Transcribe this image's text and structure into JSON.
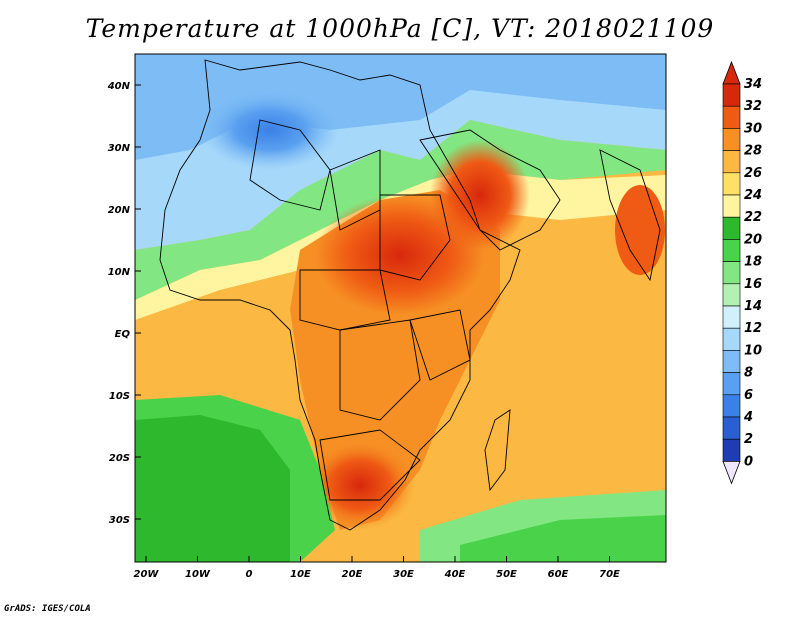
{
  "title": "Temperature at 1000hPa [C], VT: 2018021109",
  "footer": "GrADS: IGES/COLA",
  "map": {
    "lat_labels": [
      "40N",
      "30N",
      "20N",
      "10N",
      "EQ",
      "10S",
      "20S",
      "30S"
    ],
    "lon_labels": [
      "20W",
      "10W",
      "0",
      "10E",
      "20E",
      "30E",
      "40E",
      "50E",
      "60E",
      "70E"
    ]
  },
  "colorbar": {
    "ticks": [
      "0",
      "2",
      "4",
      "6",
      "8",
      "10",
      "12",
      "14",
      "16",
      "18",
      "20",
      "22",
      "24",
      "26",
      "28",
      "30",
      "32",
      "34"
    ],
    "colors": [
      "#1a1a8c",
      "#1f3cb4",
      "#2a5fd2",
      "#3a80e6",
      "#5aa0f0",
      "#7dbcf5",
      "#a6d8fa",
      "#d2f0fa",
      "#b4f0b4",
      "#82e682",
      "#4ad24a",
      "#2eb82e",
      "#fff5a0",
      "#ffe066",
      "#fbb843",
      "#f69024",
      "#ef5a14",
      "#d8280c",
      "#f0e6ff"
    ]
  }
}
